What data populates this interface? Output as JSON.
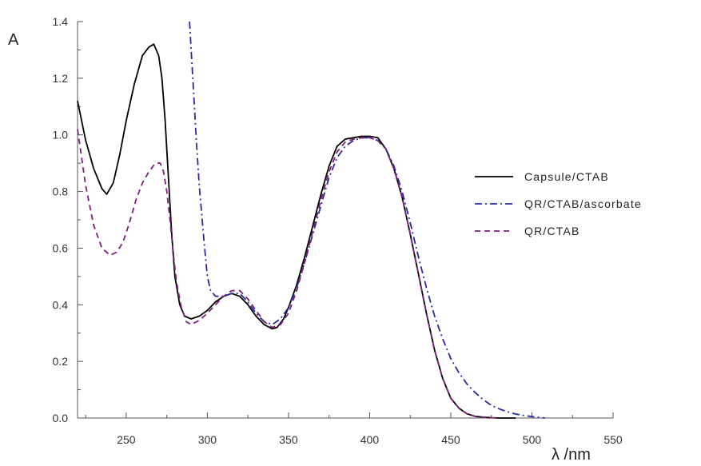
{
  "chart_data": {
    "type": "line",
    "title": "",
    "xlabel": "λ /nm",
    "ylabel": "A",
    "xlim": [
      220,
      550
    ],
    "ylim": [
      0,
      1.4
    ],
    "xticks": [
      250,
      300,
      350,
      400,
      450,
      500,
      550
    ],
    "yticks": [
      0.0,
      0.2,
      0.4,
      0.6,
      0.8,
      1.0,
      1.2,
      1.4
    ],
    "xtick_labels": [
      "250",
      "300",
      "350",
      "400",
      "450",
      "500",
      "550"
    ],
    "ytick_labels": [
      "0.0",
      "0.2",
      "0.4",
      "0.6",
      "0.8",
      "1.0",
      "1.2",
      "1.4"
    ],
    "grid": false,
    "legend_position": "right",
    "series": [
      {
        "name": "Capsule/CTAB",
        "color": "#000000",
        "dash": "solid",
        "x": [
          220,
          225,
          230,
          235,
          238,
          242,
          246,
          250,
          255,
          260,
          264,
          267,
          270,
          272,
          274,
          276,
          278,
          280,
          283,
          286,
          290,
          295,
          300,
          305,
          310,
          315,
          320,
          325,
          330,
          335,
          340,
          343,
          347,
          350,
          355,
          360,
          365,
          370,
          375,
          380,
          385,
          390,
          395,
          400,
          405,
          410,
          415,
          420,
          425,
          430,
          435,
          440,
          445,
          450,
          455,
          460,
          465,
          470,
          475,
          480,
          490
        ],
        "y": [
          1.12,
          0.98,
          0.88,
          0.81,
          0.79,
          0.83,
          0.93,
          1.05,
          1.18,
          1.28,
          1.31,
          1.32,
          1.28,
          1.2,
          1.05,
          0.85,
          0.65,
          0.5,
          0.4,
          0.36,
          0.35,
          0.36,
          0.38,
          0.41,
          0.43,
          0.44,
          0.43,
          0.4,
          0.36,
          0.33,
          0.315,
          0.32,
          0.35,
          0.39,
          0.47,
          0.57,
          0.68,
          0.79,
          0.89,
          0.96,
          0.985,
          0.99,
          0.995,
          0.995,
          0.99,
          0.95,
          0.88,
          0.78,
          0.65,
          0.51,
          0.37,
          0.24,
          0.14,
          0.07,
          0.035,
          0.015,
          0.006,
          0.003,
          0.001,
          0.0,
          0.0
        ]
      },
      {
        "name": "QR/CTAB/ascorbate",
        "color": "#2a2aa0",
        "dash": "dashdot",
        "x": [
          289,
          291,
          293,
          295,
          298,
          300,
          302,
          305,
          310,
          315,
          320,
          325,
          330,
          335,
          340,
          345,
          350,
          355,
          360,
          365,
          370,
          375,
          380,
          385,
          390,
          395,
          400,
          405,
          410,
          415,
          420,
          425,
          430,
          435,
          440,
          445,
          450,
          455,
          460,
          465,
          470,
          475,
          480,
          485,
          490,
          495,
          500,
          505,
          508
        ],
        "y": [
          1.4,
          1.2,
          1.0,
          0.82,
          0.62,
          0.5,
          0.45,
          0.43,
          0.43,
          0.44,
          0.44,
          0.41,
          0.37,
          0.34,
          0.33,
          0.35,
          0.39,
          0.46,
          0.55,
          0.65,
          0.75,
          0.85,
          0.92,
          0.96,
          0.98,
          0.99,
          0.99,
          0.98,
          0.95,
          0.89,
          0.8,
          0.69,
          0.57,
          0.46,
          0.36,
          0.28,
          0.21,
          0.16,
          0.12,
          0.09,
          0.065,
          0.045,
          0.032,
          0.022,
          0.014,
          0.009,
          0.005,
          0.002,
          0.0
        ]
      },
      {
        "name": "QR/CTAB",
        "color": "#7b1f7b",
        "dash": "dashed",
        "x": [
          220,
          225,
          230,
          235,
          240,
          244,
          248,
          252,
          256,
          260,
          264,
          268,
          271,
          273,
          275,
          277,
          279,
          281,
          284,
          287,
          290,
          295,
          300,
          305,
          310,
          315,
          320,
          325,
          330,
          335,
          340,
          345,
          350,
          355,
          360,
          365,
          370,
          375,
          380,
          385,
          390,
          395,
          400,
          405,
          410,
          415,
          420,
          425,
          430,
          435,
          440,
          445,
          450,
          455,
          460,
          465,
          470,
          475,
          480
        ],
        "y": [
          1.02,
          0.82,
          0.68,
          0.6,
          0.575,
          0.585,
          0.62,
          0.69,
          0.77,
          0.83,
          0.87,
          0.9,
          0.9,
          0.87,
          0.8,
          0.7,
          0.58,
          0.48,
          0.39,
          0.34,
          0.33,
          0.345,
          0.37,
          0.4,
          0.43,
          0.45,
          0.45,
          0.42,
          0.38,
          0.34,
          0.32,
          0.33,
          0.37,
          0.45,
          0.55,
          0.66,
          0.77,
          0.87,
          0.94,
          0.975,
          0.985,
          0.99,
          0.99,
          0.98,
          0.95,
          0.88,
          0.78,
          0.65,
          0.51,
          0.37,
          0.24,
          0.14,
          0.07,
          0.035,
          0.015,
          0.006,
          0.003,
          0.001,
          0.0
        ]
      }
    ]
  }
}
